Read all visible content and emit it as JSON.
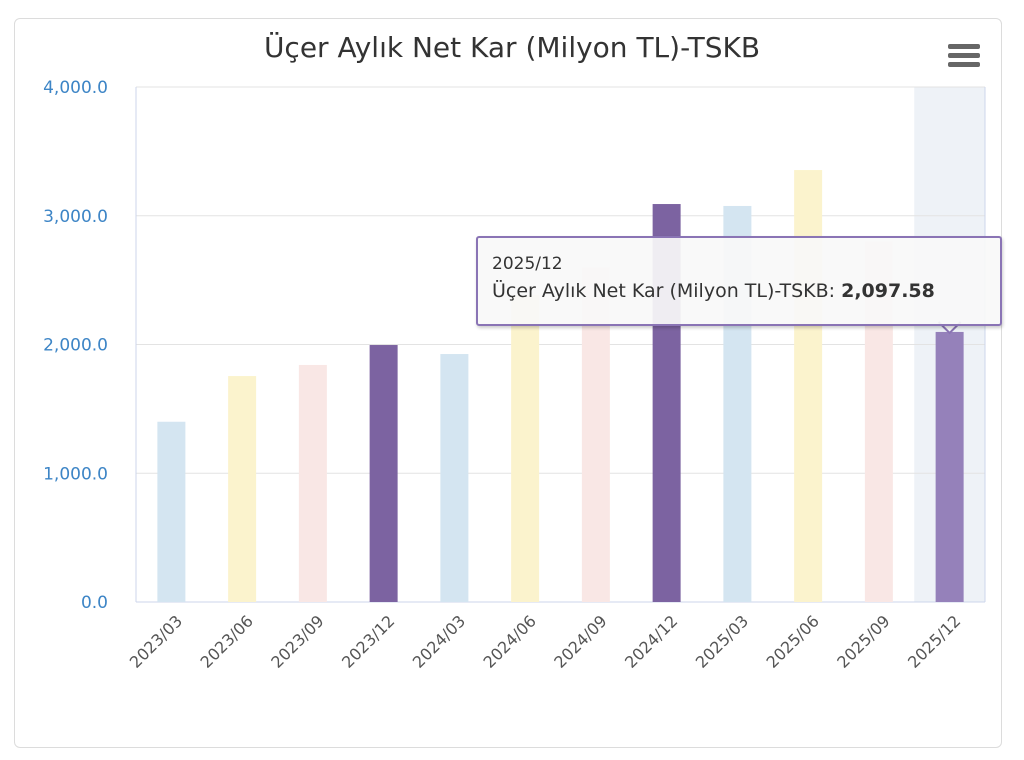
{
  "chart_data": {
    "type": "bar",
    "title": "Üçer Aylık Net Kar (Milyon TL)-TSKB",
    "categories": [
      "2023/03",
      "2023/06",
      "2023/09",
      "2023/12",
      "2024/03",
      "2024/06",
      "2024/09",
      "2024/12",
      "2025/03",
      "2025/06",
      "2025/09",
      "2025/12"
    ],
    "series": [
      {
        "name": "Üçer Aylık Net Kar (Milyon TL)-TSKB",
        "values": [
          1400,
          1755,
          1841,
          1996,
          1926,
          2385,
          2600,
          3091,
          3076,
          3355,
          2800,
          2097.58
        ]
      }
    ],
    "ylim": [
      0,
      4000
    ],
    "yticks": [
      "0.0",
      "1,000.0",
      "2,000.0",
      "3,000.0",
      "4,000.0"
    ],
    "grid": true,
    "bar_colors": [
      "#d4e5f1",
      "#fbf3cd",
      "#f9e7e5",
      "#7c63a1"
    ],
    "highlight_color": "#9581ba",
    "highlight_band_color": "#eef2f7",
    "tooltip": {
      "category": "2025/12",
      "label": "Üçer Aylık Net Kar (Milyon TL)-TSKB: ",
      "value": "2,097.58"
    }
  },
  "menu_icon": "hamburger-menu-icon"
}
